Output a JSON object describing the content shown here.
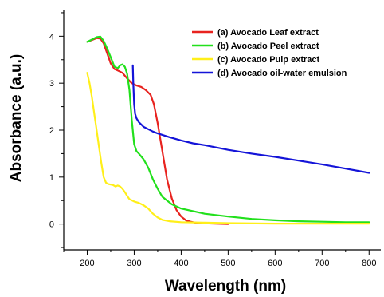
{
  "chart_data": {
    "type": "line",
    "xlabel": "Wavelength (nm)",
    "ylabel": "Absorbance (a.u.)",
    "xlim": [
      150,
      825
    ],
    "ylim": [
      -0.55,
      4.55
    ],
    "xticks": [
      200,
      300,
      400,
      500,
      600,
      700,
      800
    ],
    "yticks": [
      0,
      1,
      2,
      3,
      4
    ],
    "grid": false,
    "legend_position": "top-right",
    "series": [
      {
        "name": "(a) Avocado Leaf extract",
        "color": "#e8231f",
        "x": [
          200,
          210,
          220,
          228,
          235,
          242,
          250,
          258,
          265,
          275,
          285,
          295,
          305,
          315,
          325,
          335,
          342,
          350,
          360,
          370,
          380,
          390,
          400,
          410,
          420,
          430,
          440,
          500
        ],
        "y": [
          3.88,
          3.92,
          3.96,
          3.95,
          3.85,
          3.65,
          3.42,
          3.3,
          3.27,
          3.22,
          3.1,
          3.0,
          2.95,
          2.92,
          2.85,
          2.75,
          2.55,
          2.15,
          1.55,
          0.95,
          0.55,
          0.3,
          0.16,
          0.08,
          0.05,
          0.03,
          0.02,
          0.0
        ]
      },
      {
        "name": "(b) Avocado Peel extract",
        "color": "#22e01c",
        "x": [
          200,
          210,
          220,
          228,
          235,
          242,
          250,
          258,
          265,
          270,
          275,
          280,
          285,
          290,
          295,
          300,
          305,
          310,
          320,
          330,
          340,
          350,
          360,
          380,
          400,
          450,
          500,
          550,
          600,
          650,
          700,
          750,
          800
        ],
        "y": [
          3.88,
          3.93,
          3.98,
          3.99,
          3.9,
          3.75,
          3.55,
          3.35,
          3.32,
          3.38,
          3.4,
          3.35,
          3.2,
          2.85,
          2.2,
          1.7,
          1.55,
          1.5,
          1.38,
          1.2,
          0.95,
          0.75,
          0.58,
          0.42,
          0.33,
          0.22,
          0.16,
          0.11,
          0.08,
          0.06,
          0.05,
          0.04,
          0.04
        ]
      },
      {
        "name": "(c) Avocado Pulp extract",
        "color": "#ffef1a",
        "x": [
          200,
          205,
          210,
          215,
          220,
          225,
          230,
          235,
          240,
          245,
          250,
          255,
          260,
          265,
          270,
          275,
          280,
          285,
          290,
          300,
          310,
          320,
          330,
          340,
          350,
          360,
          375,
          400,
          450,
          500,
          600,
          700,
          800
        ],
        "y": [
          3.22,
          3.0,
          2.7,
          2.35,
          2.0,
          1.65,
          1.3,
          1.0,
          0.88,
          0.85,
          0.84,
          0.83,
          0.8,
          0.82,
          0.8,
          0.75,
          0.68,
          0.6,
          0.53,
          0.48,
          0.45,
          0.4,
          0.33,
          0.22,
          0.14,
          0.09,
          0.06,
          0.04,
          0.03,
          0.02,
          0.01,
          0.01,
          0.01
        ]
      },
      {
        "name": "(d) Avocado oil-water emulsion",
        "color": "#1414d8",
        "x": [
          297,
          298,
          300,
          302,
          305,
          310,
          315,
          320,
          330,
          340,
          350,
          375,
          400,
          425,
          450,
          500,
          550,
          600,
          650,
          700,
          750,
          800
        ],
        "y": [
          3.38,
          3.0,
          2.55,
          2.35,
          2.25,
          2.17,
          2.12,
          2.07,
          2.02,
          1.97,
          1.93,
          1.85,
          1.78,
          1.72,
          1.68,
          1.58,
          1.5,
          1.43,
          1.35,
          1.27,
          1.18,
          1.09
        ]
      }
    ]
  }
}
